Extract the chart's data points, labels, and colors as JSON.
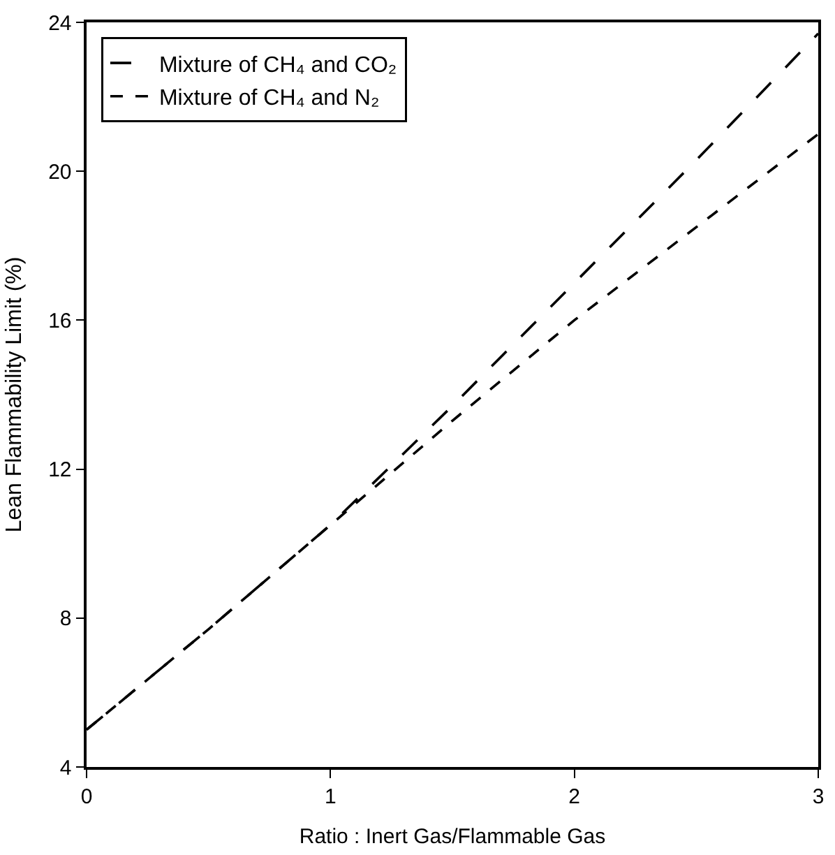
{
  "chart_data": {
    "type": "line",
    "xlabel": "Ratio : Inert Gas/Flammable Gas",
    "ylabel": "Lean Flammability Limit (%)",
    "x": [
      0,
      0.5,
      1,
      1.5,
      2,
      2.5,
      3
    ],
    "series": [
      {
        "name": "Mixture of CH₄ and CO₂",
        "color": "#000000",
        "line_style": "longdash",
        "values": [
          5,
          7.7,
          10.5,
          13.7,
          17.0,
          20.3,
          23.7
        ]
      },
      {
        "name": "Mixture of CH₄ and N₂",
        "color": "#000000",
        "line_style": "dashed",
        "values": [
          5,
          7.7,
          10.5,
          13.3,
          16.0,
          18.5,
          21.0
        ]
      }
    ],
    "xlim": [
      0,
      3
    ],
    "xticks": [
      0,
      1,
      2,
      3
    ],
    "ylim": [
      4,
      24
    ],
    "yticks": [
      4,
      8,
      12,
      16,
      20,
      24
    ],
    "legend": "top left",
    "marker": "none"
  }
}
